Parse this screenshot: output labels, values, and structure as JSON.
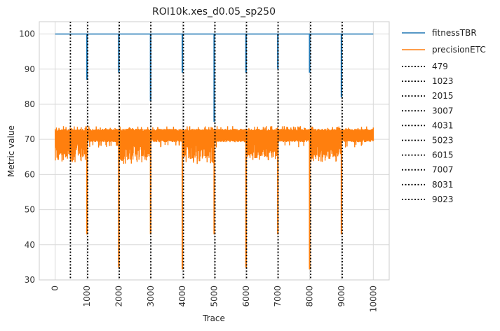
{
  "chart_data": {
    "type": "line",
    "title": "ROI10k.xes_d0.05_sp250",
    "xlabel": "Trace",
    "ylabel": "Metric value",
    "xlim": [
      -500,
      10500
    ],
    "ylim": [
      30,
      103.5
    ],
    "xticks": [
      0,
      1000,
      2000,
      3000,
      4000,
      5000,
      6000,
      7000,
      8000,
      9000,
      10000
    ],
    "yticks": [
      30,
      40,
      50,
      60,
      70,
      80,
      90,
      100
    ],
    "grid": true,
    "legend_position": "outside-right",
    "series": [
      {
        "name": "fitnessTBR",
        "color": "#1f77b4",
        "baseline": 100,
        "dips": [
          {
            "x": 1000,
            "min": 87
          },
          {
            "x": 2000,
            "min": 89
          },
          {
            "x": 3000,
            "min": 81
          },
          {
            "x": 4000,
            "min": 89
          },
          {
            "x": 5000,
            "min": 75
          },
          {
            "x": 6000,
            "min": 89
          },
          {
            "x": 7000,
            "min": 90
          },
          {
            "x": 8000,
            "min": 89
          },
          {
            "x": 9000,
            "min": 82
          }
        ],
        "x_range": [
          0,
          10000
        ]
      },
      {
        "name": "precisionETC",
        "color": "#ff7f0e",
        "band": {
          "upper": 73,
          "lower_typical": 70
        },
        "noisy_segments": [
          {
            "x0": 0,
            "x1": 1000,
            "low": 63.5
          },
          {
            "x0": 2000,
            "x1": 3000,
            "low": 63
          },
          {
            "x0": 4000,
            "x1": 5000,
            "low": 63
          },
          {
            "x0": 6000,
            "x1": 7000,
            "low": 64
          },
          {
            "x0": 8000,
            "x1": 9000,
            "low": 63.5
          }
        ],
        "drops": [
          {
            "x": 1000,
            "min": 43
          },
          {
            "x": 2000,
            "min": 33.5
          },
          {
            "x": 3000,
            "min": 43
          },
          {
            "x": 4000,
            "min": 33
          },
          {
            "x": 5000,
            "min": 43
          },
          {
            "x": 6000,
            "min": 33.5
          },
          {
            "x": 7000,
            "min": 43
          },
          {
            "x": 8000,
            "min": 33
          },
          {
            "x": 9000,
            "min": 43
          }
        ],
        "x_range": [
          0,
          10000
        ]
      }
    ],
    "drift_lines": {
      "color": "#000000",
      "style": "dotted",
      "positions": [
        479,
        1023,
        2015,
        3007,
        4031,
        5023,
        6015,
        7007,
        8031,
        9023
      ],
      "labels": [
        "479",
        "1023",
        "2015",
        "3007",
        "4031",
        "5023",
        "6015",
        "7007",
        "8031",
        "9023"
      ]
    }
  }
}
